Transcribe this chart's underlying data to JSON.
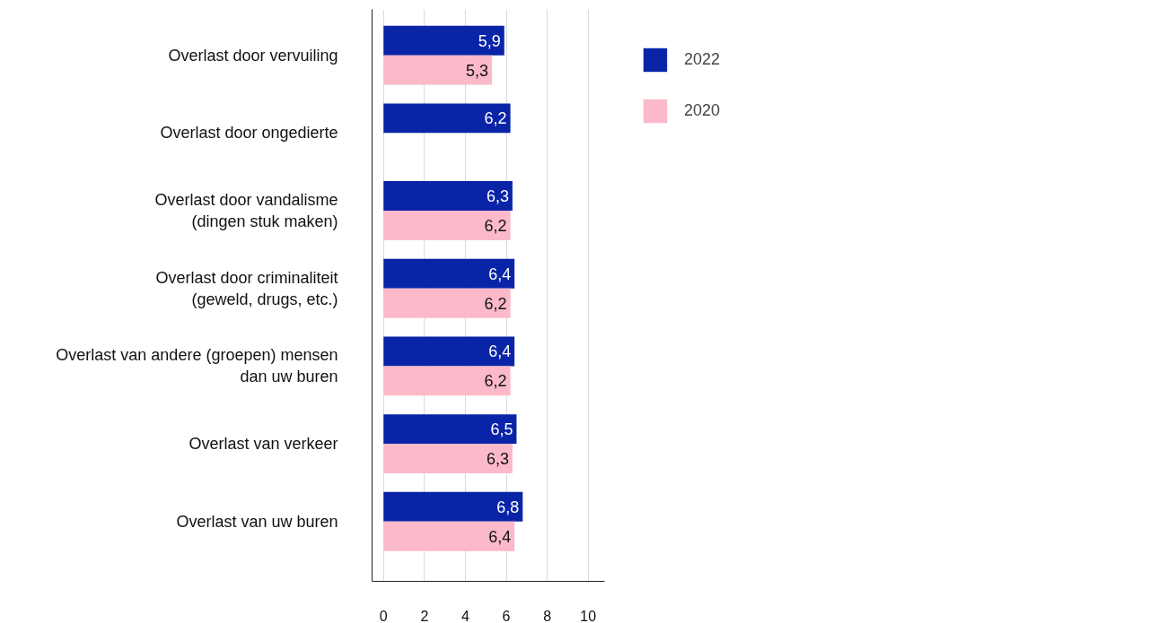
{
  "chart_data": {
    "type": "bar",
    "orientation": "horizontal",
    "categories": [
      "Overlast door vervuiling",
      "Overlast door ongedierte",
      "Overlast door vandalisme\n(dingen stuk maken)",
      "Overlast door criminaliteit\n(geweld, drugs, etc.)",
      "Overlast van andere (groepen) mensen\ndan uw buren",
      "Overlast van verkeer",
      "Overlast van uw buren"
    ],
    "series": [
      {
        "name": "2022",
        "color": "#0a24a8",
        "values": [
          5.9,
          6.2,
          6.3,
          6.4,
          6.4,
          6.5,
          6.8
        ],
        "value_labels": [
          "5,9",
          "6,2",
          "6,3",
          "6,4",
          "6,4",
          "6,5",
          "6,8"
        ]
      },
      {
        "name": "2020",
        "color": "#fbb9c9",
        "values": [
          5.3,
          null,
          6.2,
          6.2,
          6.2,
          6.3,
          6.4
        ],
        "value_labels": [
          "5,3",
          null,
          "6,2",
          "6,2",
          "6,2",
          "6,3",
          "6,4"
        ]
      }
    ],
    "xlim": [
      -0.56,
      10.8
    ],
    "xticks": [
      0,
      2,
      4,
      6,
      8,
      10
    ],
    "grid": "x",
    "legend": "top right"
  }
}
